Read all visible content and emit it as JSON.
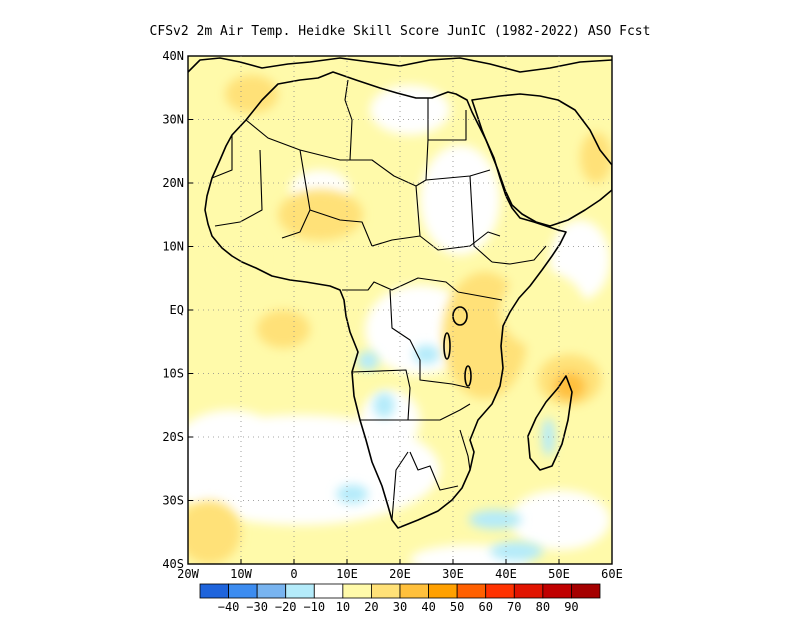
{
  "title": "CFSv2  2m Air Temp. Heidke Skill Score JunIC (1982-2022) ASO Fcst",
  "map": {
    "lon_range": [
      -20,
      60
    ],
    "lat_range": [
      -40,
      40
    ],
    "lon_ticks": [
      {
        "value": -20,
        "label": "20W"
      },
      {
        "value": -10,
        "label": "10W"
      },
      {
        "value": 0,
        "label": "0"
      },
      {
        "value": 10,
        "label": "10E"
      },
      {
        "value": 20,
        "label": "20E"
      },
      {
        "value": 30,
        "label": "30E"
      },
      {
        "value": 40,
        "label": "40E"
      },
      {
        "value": 50,
        "label": "50E"
      },
      {
        "value": 60,
        "label": "60E"
      }
    ],
    "lat_ticks": [
      {
        "value": 40,
        "label": "40N"
      },
      {
        "value": 30,
        "label": "30N"
      },
      {
        "value": 20,
        "label": "20N"
      },
      {
        "value": 10,
        "label": "10N"
      },
      {
        "value": 0,
        "label": "EQ"
      },
      {
        "value": -10,
        "label": "10S"
      },
      {
        "value": -20,
        "label": "20S"
      },
      {
        "value": -30,
        "label": "30S"
      },
      {
        "value": -40,
        "label": "40S"
      }
    ],
    "grid": true
  },
  "colorbar": {
    "colors": [
      "#1e64dc",
      "#3c8cf0",
      "#78b4f0",
      "#b4ebfa",
      "#ffffff",
      "#fffaaa",
      "#ffe178",
      "#ffc03c",
      "#ffa000",
      "#ff6000",
      "#ff3200",
      "#e11400",
      "#c00000",
      "#a50000"
    ],
    "labels": [
      "-40",
      "-30",
      "-20",
      "-10",
      "10",
      "20",
      "30",
      "40",
      "50",
      "60",
      "70",
      "80",
      "90"
    ]
  },
  "skill_patches": [
    {
      "lon": 36,
      "lat": -4,
      "rx": 8,
      "ry": 10,
      "color": "#ffe178"
    },
    {
      "lon": 52,
      "lat": -11,
      "rx": 6,
      "ry": 4,
      "color": "#ffe178"
    },
    {
      "lon": 52,
      "lat": -12,
      "rx": 3,
      "ry": 2.2,
      "color": "#ffc03c"
    },
    {
      "lon": -17,
      "lat": -34,
      "rx": 3,
      "ry": 2.5,
      "color": "#ffc03c"
    },
    {
      "lon": -16,
      "lat": -35,
      "rx": 6,
      "ry": 5,
      "color": "#ffe178"
    },
    {
      "lon": -2,
      "lat": -3,
      "rx": 5,
      "ry": 3,
      "color": "#ffe178"
    },
    {
      "lon": 5,
      "lat": 15,
      "rx": 8,
      "ry": 4,
      "color": "#ffe178"
    },
    {
      "lon": -8,
      "lat": 34,
      "rx": 5,
      "ry": 3,
      "color": "#ffe178"
    },
    {
      "lon": 57,
      "lat": 24,
      "rx": 3,
      "ry": 4,
      "color": "#ffe178"
    },
    {
      "lon": 47,
      "lat": 0,
      "rx": 8,
      "ry": 6,
      "color": "#fffaaa"
    },
    {
      "lon": -12,
      "lat": 8,
      "rx": 6,
      "ry": 4,
      "color": "#fffaaa"
    },
    {
      "lon": 17,
      "lat": -15,
      "rx": 2,
      "ry": 2,
      "color": "#b4ebfa"
    },
    {
      "lon": 14,
      "lat": -8,
      "rx": 2,
      "ry": 1.5,
      "color": "#b4ebfa"
    },
    {
      "lon": 25,
      "lat": -7,
      "rx": 2.5,
      "ry": 1.5,
      "color": "#b4ebfa"
    },
    {
      "lon": 38,
      "lat": -33,
      "rx": 5,
      "ry": 1.5,
      "color": "#b4ebfa"
    },
    {
      "lon": 42,
      "lat": -38,
      "rx": 5,
      "ry": 1.5,
      "color": "#b4ebfa"
    },
    {
      "lon": 11,
      "lat": -29,
      "rx": 3,
      "ry": 1.5,
      "color": "#b4ebfa"
    },
    {
      "lon": 48,
      "lat": -20,
      "rx": 1.2,
      "ry": 3,
      "color": "#b4ebfa"
    }
  ]
}
